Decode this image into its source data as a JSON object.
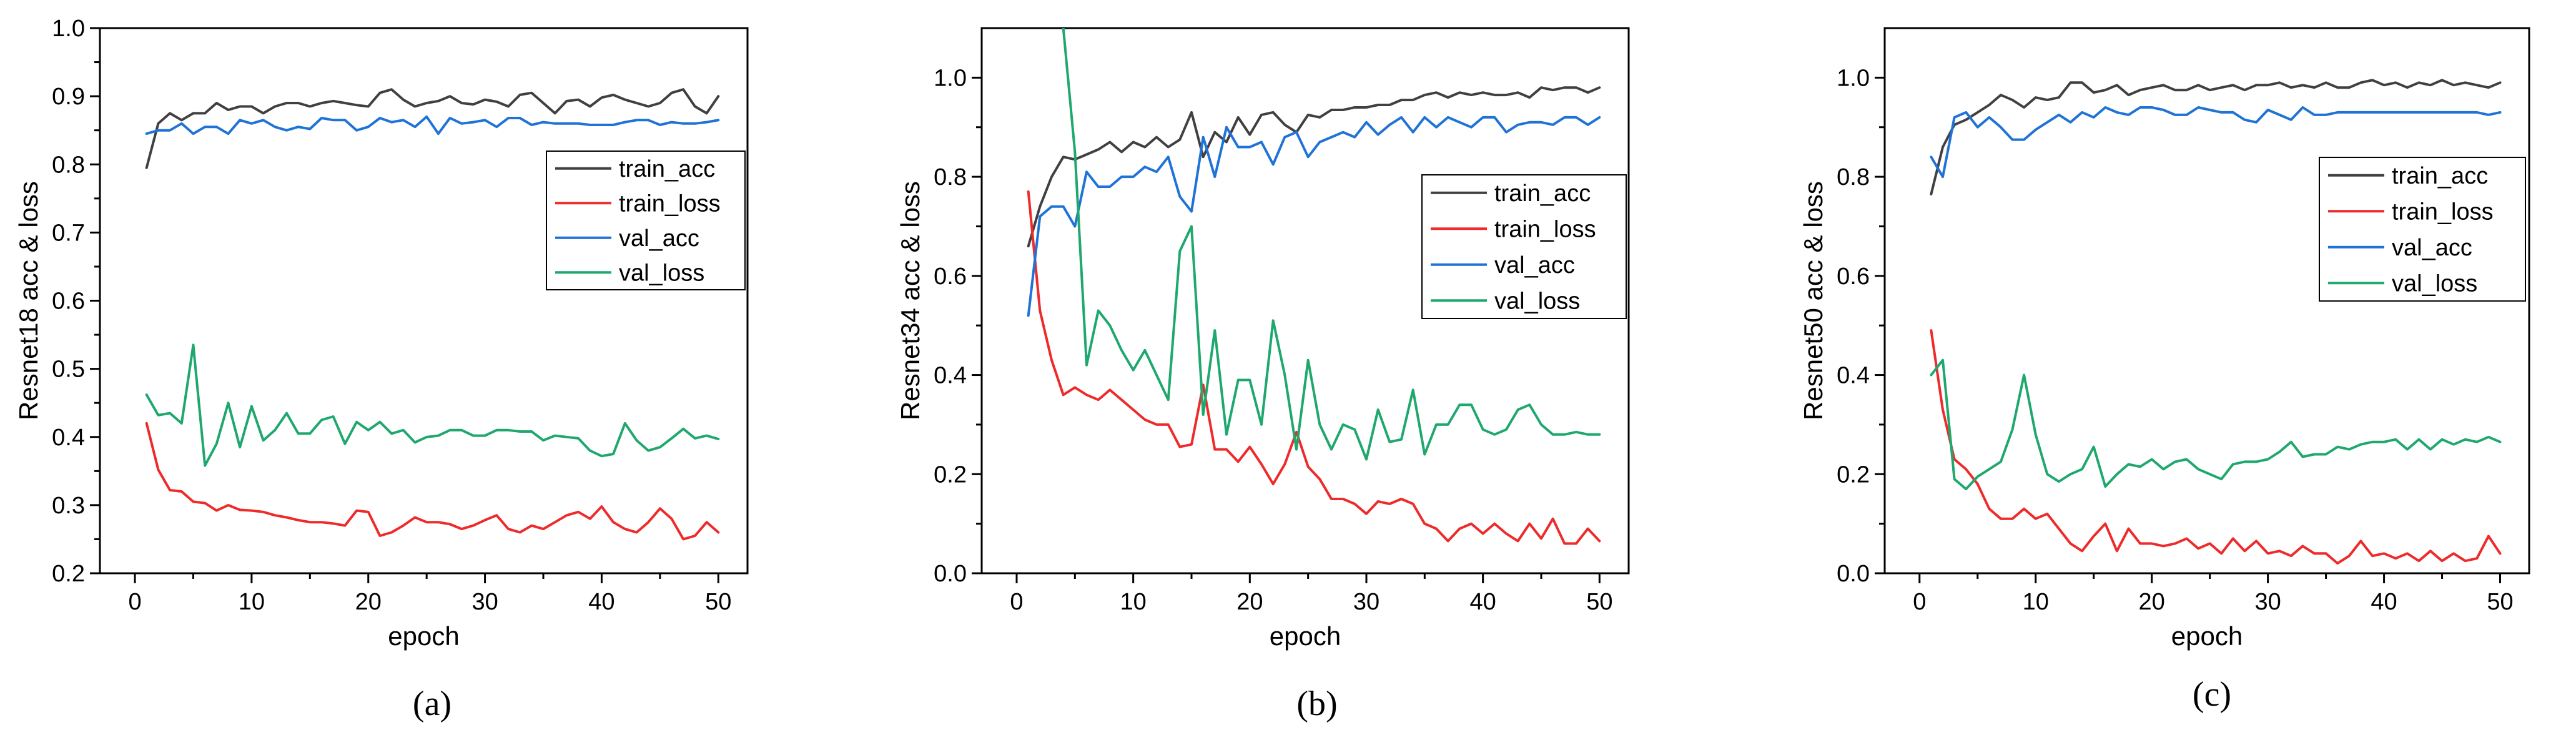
{
  "chart_data": [
    {
      "type": "line",
      "label": "(a)",
      "xlabel": "epoch",
      "ylabel": "Resnet18 acc & loss",
      "xlim": [
        -3,
        52.5
      ],
      "ylim": [
        0.2,
        1.0
      ],
      "xticks": [
        0,
        10,
        20,
        30,
        40,
        50
      ],
      "yticks": [
        0.2,
        0.3,
        0.4,
        0.5,
        0.6,
        0.7,
        0.8,
        0.9,
        1.0
      ],
      "ytick_labels": [
        "0.2",
        "0.3",
        "0.4",
        "0.5",
        "0.6",
        "0.7",
        "0.8",
        "0.9",
        "1.0"
      ],
      "legend_position": "right-middle",
      "x": [
        1,
        2,
        3,
        4,
        5,
        6,
        7,
        8,
        9,
        10,
        11,
        12,
        13,
        14,
        15,
        16,
        17,
        18,
        19,
        20,
        21,
        22,
        23,
        24,
        25,
        26,
        27,
        28,
        29,
        30,
        31,
        32,
        33,
        34,
        35,
        36,
        37,
        38,
        39,
        40,
        41,
        42,
        43,
        44,
        45,
        46,
        47,
        48,
        49,
        50
      ],
      "series": [
        {
          "name": "train_acc",
          "color": "#404040",
          "values": [
            0.795,
            0.86,
            0.875,
            0.865,
            0.875,
            0.875,
            0.89,
            0.88,
            0.885,
            0.885,
            0.875,
            0.885,
            0.89,
            0.89,
            0.885,
            0.89,
            0.893,
            0.89,
            0.887,
            0.885,
            0.905,
            0.91,
            0.895,
            0.885,
            0.89,
            0.893,
            0.9,
            0.89,
            0.888,
            0.895,
            0.892,
            0.885,
            0.902,
            0.905,
            0.89,
            0.875,
            0.893,
            0.895,
            0.885,
            0.898,
            0.902,
            0.895,
            0.89,
            0.885,
            0.89,
            0.905,
            0.91,
            0.885,
            0.875,
            0.9
          ]
        },
        {
          "name": "train_loss",
          "color": "#ee2a2a",
          "values": [
            0.42,
            0.352,
            0.322,
            0.32,
            0.305,
            0.303,
            0.292,
            0.3,
            0.293,
            0.292,
            0.29,
            0.285,
            0.282,
            0.278,
            0.275,
            0.275,
            0.273,
            0.27,
            0.292,
            0.29,
            0.255,
            0.26,
            0.27,
            0.282,
            0.275,
            0.275,
            0.272,
            0.265,
            0.27,
            0.278,
            0.285,
            0.265,
            0.26,
            0.27,
            0.265,
            0.275,
            0.285,
            0.29,
            0.28,
            0.298,
            0.275,
            0.265,
            0.26,
            0.275,
            0.295,
            0.28,
            0.25,
            0.255,
            0.275,
            0.26
          ]
        },
        {
          "name": "val_acc",
          "color": "#1f73d6",
          "values": [
            0.845,
            0.85,
            0.85,
            0.86,
            0.845,
            0.855,
            0.855,
            0.845,
            0.865,
            0.86,
            0.865,
            0.855,
            0.85,
            0.855,
            0.852,
            0.868,
            0.865,
            0.865,
            0.85,
            0.855,
            0.868,
            0.862,
            0.865,
            0.855,
            0.87,
            0.845,
            0.868,
            0.86,
            0.862,
            0.865,
            0.855,
            0.868,
            0.868,
            0.858,
            0.862,
            0.86,
            0.86,
            0.86,
            0.858,
            0.858,
            0.858,
            0.862,
            0.865,
            0.865,
            0.858,
            0.862,
            0.86,
            0.86,
            0.862,
            0.865
          ]
        },
        {
          "name": "val_loss",
          "color": "#1fa86e",
          "values": [
            0.462,
            0.432,
            0.435,
            0.42,
            0.535,
            0.358,
            0.39,
            0.45,
            0.385,
            0.445,
            0.395,
            0.41,
            0.435,
            0.405,
            0.405,
            0.425,
            0.43,
            0.39,
            0.422,
            0.41,
            0.422,
            0.405,
            0.41,
            0.392,
            0.4,
            0.402,
            0.41,
            0.41,
            0.402,
            0.402,
            0.41,
            0.41,
            0.408,
            0.408,
            0.395,
            0.402,
            0.4,
            0.398,
            0.38,
            0.372,
            0.375,
            0.42,
            0.395,
            0.38,
            0.385,
            0.398,
            0.412,
            0.398,
            0.402,
            0.397
          ]
        }
      ]
    },
    {
      "type": "line",
      "label": "(b)",
      "xlabel": "epoch",
      "ylabel": "Resnet34 acc & loss",
      "xlim": [
        -3,
        52.5
      ],
      "ylim": [
        0.0,
        1.1
      ],
      "xticks": [
        0,
        10,
        20,
        30,
        40,
        50
      ],
      "yticks": [
        0.0,
        0.2,
        0.4,
        0.6,
        0.8,
        1.0
      ],
      "ytick_labels": [
        "0.0",
        "0.2",
        "0.4",
        "0.6",
        "0.8",
        "1.0"
      ],
      "legend_position": "right-middle",
      "x": [
        1,
        2,
        3,
        4,
        5,
        6,
        7,
        8,
        9,
        10,
        11,
        12,
        13,
        14,
        15,
        16,
        17,
        18,
        19,
        20,
        21,
        22,
        23,
        24,
        25,
        26,
        27,
        28,
        29,
        30,
        31,
        32,
        33,
        34,
        35,
        36,
        37,
        38,
        39,
        40,
        41,
        42,
        43,
        44,
        45,
        46,
        47,
        48,
        49,
        50
      ],
      "series": [
        {
          "name": "train_acc",
          "color": "#404040",
          "values": [
            0.66,
            0.74,
            0.8,
            0.84,
            0.835,
            0.845,
            0.855,
            0.87,
            0.85,
            0.87,
            0.86,
            0.88,
            0.86,
            0.875,
            0.93,
            0.84,
            0.89,
            0.87,
            0.92,
            0.885,
            0.925,
            0.93,
            0.905,
            0.89,
            0.925,
            0.92,
            0.935,
            0.935,
            0.94,
            0.94,
            0.945,
            0.945,
            0.955,
            0.955,
            0.965,
            0.97,
            0.96,
            0.97,
            0.965,
            0.97,
            0.965,
            0.965,
            0.97,
            0.96,
            0.98,
            0.975,
            0.98,
            0.98,
            0.97,
            0.98
          ]
        },
        {
          "name": "train_loss",
          "color": "#ee2a2a",
          "values": [
            0.77,
            0.53,
            0.43,
            0.36,
            0.375,
            0.36,
            0.35,
            0.37,
            0.35,
            0.33,
            0.31,
            0.3,
            0.3,
            0.255,
            0.26,
            0.38,
            0.25,
            0.25,
            0.225,
            0.255,
            0.22,
            0.18,
            0.22,
            0.285,
            0.215,
            0.19,
            0.15,
            0.15,
            0.14,
            0.12,
            0.145,
            0.14,
            0.15,
            0.14,
            0.1,
            0.09,
            0.065,
            0.09,
            0.1,
            0.08,
            0.1,
            0.08,
            0.065,
            0.1,
            0.07,
            0.11,
            0.06,
            0.06,
            0.09,
            0.065
          ]
        },
        {
          "name": "val_acc",
          "color": "#1f73d6",
          "values": [
            0.52,
            0.72,
            0.74,
            0.74,
            0.7,
            0.81,
            0.78,
            0.78,
            0.8,
            0.8,
            0.82,
            0.81,
            0.84,
            0.76,
            0.73,
            0.88,
            0.8,
            0.9,
            0.86,
            0.86,
            0.87,
            0.825,
            0.88,
            0.89,
            0.84,
            0.87,
            0.88,
            0.89,
            0.88,
            0.91,
            0.885,
            0.905,
            0.92,
            0.89,
            0.92,
            0.9,
            0.92,
            0.91,
            0.9,
            0.92,
            0.92,
            0.89,
            0.905,
            0.91,
            0.91,
            0.905,
            0.92,
            0.92,
            0.905,
            0.92
          ]
        },
        {
          "name": "val_loss",
          "color": "#1fa86e",
          "values": [
            null,
            null,
            null,
            1.1,
            0.85,
            0.42,
            0.53,
            0.5,
            0.45,
            0.41,
            0.45,
            0.4,
            0.35,
            0.65,
            0.7,
            0.32,
            0.49,
            0.28,
            0.39,
            0.39,
            0.3,
            0.51,
            0.4,
            0.25,
            0.43,
            0.3,
            0.25,
            0.3,
            0.29,
            0.23,
            0.33,
            0.265,
            0.27,
            0.37,
            0.24,
            0.3,
            0.3,
            0.34,
            0.34,
            0.29,
            0.28,
            0.29,
            0.33,
            0.34,
            0.3,
            0.28,
            0.28,
            0.285,
            0.28,
            0.28
          ]
        }
      ]
    },
    {
      "type": "line",
      "label": "(c)",
      "xlabel": "epoch",
      "ylabel": "Resnet50 acc & loss",
      "xlim": [
        -3,
        52.5
      ],
      "ylim": [
        0.0,
        1.1
      ],
      "xticks": [
        0,
        10,
        20,
        30,
        40,
        50
      ],
      "yticks": [
        0.0,
        0.2,
        0.4,
        0.6,
        0.8,
        1.0
      ],
      "ytick_labels": [
        "0.0",
        "0.2",
        "0.4",
        "0.6",
        "0.8",
        "1.0"
      ],
      "legend_position": "right-middle",
      "x": [
        1,
        2,
        3,
        4,
        5,
        6,
        7,
        8,
        9,
        10,
        11,
        12,
        13,
        14,
        15,
        16,
        17,
        18,
        19,
        20,
        21,
        22,
        23,
        24,
        25,
        26,
        27,
        28,
        29,
        30,
        31,
        32,
        33,
        34,
        35,
        36,
        37,
        38,
        39,
        40,
        41,
        42,
        43,
        44,
        45,
        46,
        47,
        48,
        49,
        50
      ],
      "series": [
        {
          "name": "train_acc",
          "color": "#404040",
          "values": [
            0.765,
            0.86,
            0.905,
            0.915,
            0.93,
            0.945,
            0.965,
            0.955,
            0.94,
            0.96,
            0.955,
            0.96,
            0.99,
            0.99,
            0.97,
            0.975,
            0.985,
            0.965,
            0.975,
            0.98,
            0.985,
            0.975,
            0.975,
            0.985,
            0.975,
            0.98,
            0.985,
            0.975,
            0.985,
            0.985,
            0.99,
            0.98,
            0.985,
            0.98,
            0.99,
            0.98,
            0.98,
            0.99,
            0.995,
            0.985,
            0.99,
            0.98,
            0.99,
            0.985,
            0.995,
            0.985,
            0.99,
            0.985,
            0.98,
            0.99
          ]
        },
        {
          "name": "train_loss",
          "color": "#ee2a2a",
          "values": [
            0.49,
            0.33,
            0.23,
            0.21,
            0.18,
            0.13,
            0.11,
            0.11,
            0.13,
            0.11,
            0.12,
            0.09,
            0.06,
            0.045,
            0.075,
            0.1,
            0.045,
            0.09,
            0.06,
            0.06,
            0.055,
            0.06,
            0.07,
            0.05,
            0.06,
            0.04,
            0.07,
            0.045,
            0.065,
            0.04,
            0.045,
            0.035,
            0.055,
            0.04,
            0.04,
            0.02,
            0.035,
            0.065,
            0.035,
            0.04,
            0.03,
            0.04,
            0.025,
            0.045,
            0.025,
            0.04,
            0.025,
            0.03,
            0.075,
            0.04
          ]
        },
        {
          "name": "val_acc",
          "color": "#1f73d6",
          "values": [
            0.84,
            0.8,
            0.92,
            0.93,
            0.9,
            0.92,
            0.9,
            0.875,
            0.875,
            0.895,
            0.91,
            0.925,
            0.91,
            0.93,
            0.92,
            0.94,
            0.93,
            0.925,
            0.94,
            0.94,
            0.935,
            0.925,
            0.925,
            0.94,
            0.935,
            0.93,
            0.93,
            0.915,
            0.91,
            0.935,
            0.925,
            0.915,
            0.94,
            0.925,
            0.925,
            0.93,
            0.93,
            0.93,
            0.93,
            0.93,
            0.93,
            0.93,
            0.93,
            0.93,
            0.93,
            0.93,
            0.93,
            0.93,
            0.925,
            0.93
          ]
        },
        {
          "name": "val_loss",
          "color": "#1fa86e",
          "values": [
            0.4,
            0.43,
            0.19,
            0.17,
            0.195,
            0.21,
            0.225,
            0.29,
            0.4,
            0.28,
            0.2,
            0.185,
            0.2,
            0.21,
            0.255,
            0.175,
            0.2,
            0.22,
            0.215,
            0.23,
            0.21,
            0.225,
            0.23,
            0.21,
            0.2,
            0.19,
            0.22,
            0.225,
            0.225,
            0.23,
            0.245,
            0.265,
            0.235,
            0.24,
            0.24,
            0.255,
            0.25,
            0.26,
            0.265,
            0.265,
            0.27,
            0.25,
            0.27,
            0.25,
            0.27,
            0.26,
            0.27,
            0.265,
            0.275,
            0.265
          ]
        }
      ]
    }
  ]
}
